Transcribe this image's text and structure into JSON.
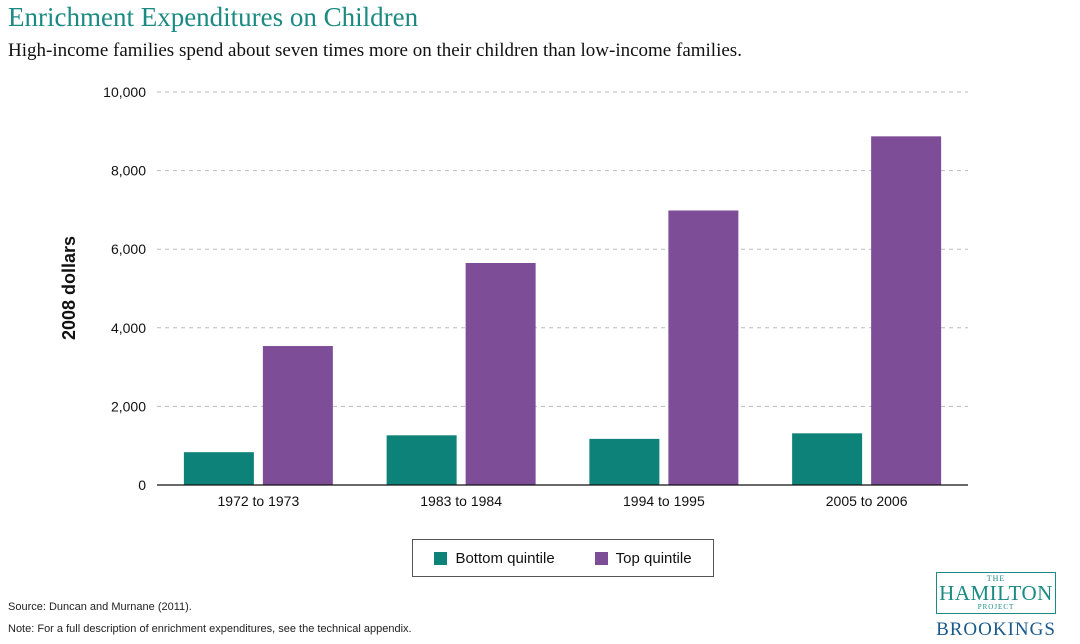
{
  "header": {
    "title": "Enrichment Expenditures on Children",
    "subtitle": "High-income families spend about seven times more on their children than low-income families."
  },
  "chart_data": {
    "type": "bar",
    "categories": [
      "1972 to 1973",
      "1983 to 1984",
      "1994 to 1995",
      "2005 to 2006"
    ],
    "series": [
      {
        "name": "Bottom quintile",
        "values": [
          835,
          1264,
          1174,
          1315
        ],
        "color": "#0d8278"
      },
      {
        "name": "Top quintile",
        "values": [
          3536,
          5649,
          6985,
          8872
        ],
        "color": "#7d4e97"
      }
    ],
    "ylabel": "2008 dollars",
    "xlabel": "",
    "ylim": [
      0,
      10000
    ],
    "yticks": [
      0,
      2000,
      4000,
      6000,
      8000,
      10000
    ],
    "ytick_labels": [
      "0",
      "2,000",
      "4,000",
      "6,000",
      "8,000",
      "10,000"
    ],
    "grid": "horizontal dashed",
    "legend_position": "bottom-center"
  },
  "footer": {
    "source": "Source: Duncan and Murnane (2011).",
    "note": "Note: For a full description of enrichment expenditures, see the technical appendix."
  },
  "logo": {
    "the": "THE",
    "hamilton": "HAMILTON",
    "project": "PROJECT",
    "brookings": "BROOKINGS"
  }
}
